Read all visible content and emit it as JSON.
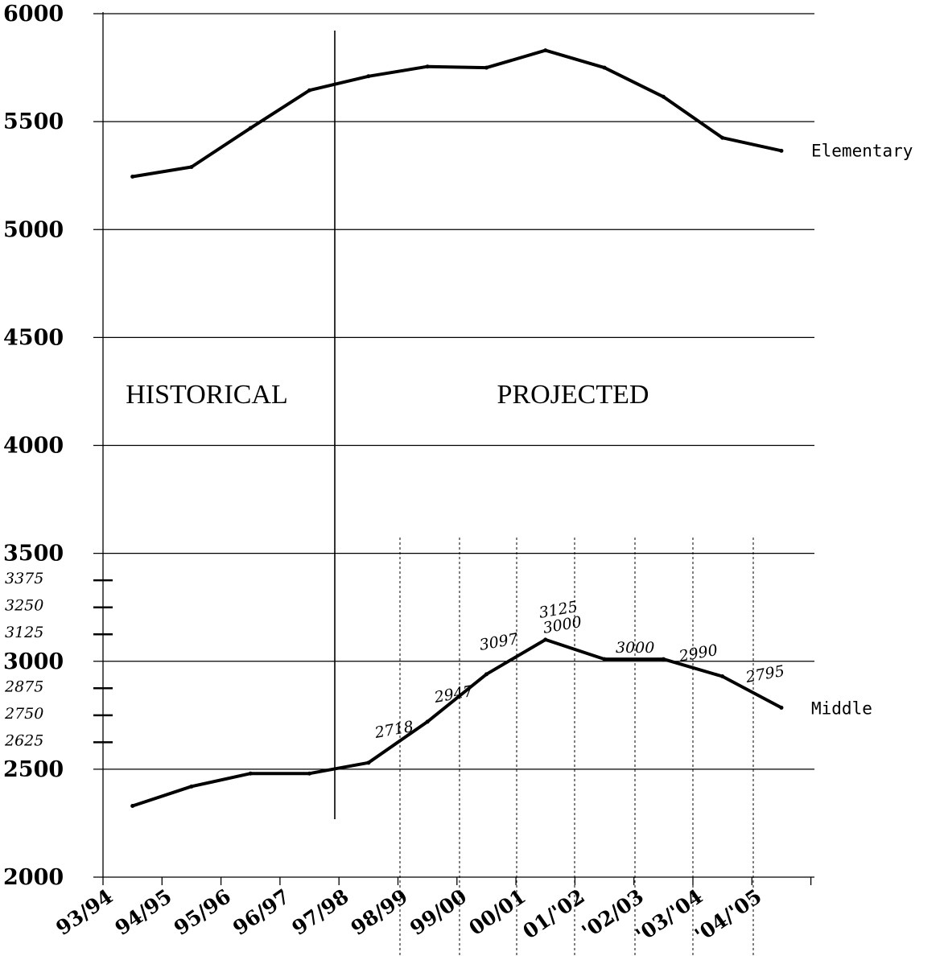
{
  "chart_data": {
    "type": "line",
    "title": "",
    "xlabel": "",
    "ylabel": "",
    "ylim": [
      2000,
      6000
    ],
    "yticks": [
      "2000",
      "2500",
      "3000",
      "3500",
      "4000",
      "4500",
      "5000",
      "5500",
      "6000"
    ],
    "categories": [
      "93/94",
      "94/95",
      "95/96",
      "96/97",
      "97/98",
      "98/99",
      "99/00",
      "00/01",
      "01/'02",
      "'02/03",
      "'03/'04",
      "'04/'05"
    ],
    "regions": [
      "HISTORICAL",
      "PROJECTED"
    ],
    "series": [
      {
        "name": "Elementary",
        "x": [
          0.5,
          1.5,
          2.5,
          3.5,
          4.5,
          5.5,
          6.5,
          7.5,
          8.5,
          9.5,
          10.5,
          11.5
        ],
        "values": [
          5245,
          5290,
          5470,
          5645,
          5710,
          5755,
          5750,
          5830,
          5750,
          5615,
          5425,
          5365
        ]
      },
      {
        "name": "Middle",
        "x": [
          0.5,
          1.5,
          2.5,
          3.5,
          4.5,
          5.5,
          6.5,
          7.5,
          8.5,
          9.5,
          10.5,
          11.5
        ],
        "values": [
          2330,
          2420,
          2480,
          2480,
          2530,
          2720,
          2940,
          3100,
          3010,
          3010,
          2930,
          2785
        ]
      }
    ],
    "handwritten_ticks": [
      "3375",
      "3250",
      "3125",
      "2875",
      "2750",
      "2625"
    ],
    "handwritten_labels": [
      "2718",
      "2947",
      "3097",
      "3125",
      "3000",
      "2990",
      "2795"
    ]
  }
}
